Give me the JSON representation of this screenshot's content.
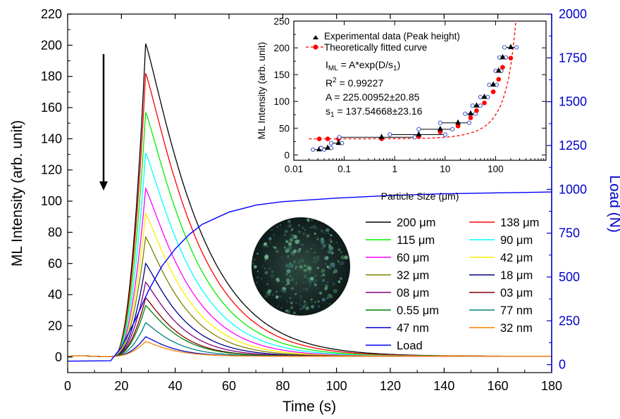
{
  "chart_data": [
    {
      "type": "line",
      "xlabel": "Time (s)",
      "ylabel": "ML Intensity (arb. unit)",
      "y2label": "Load (N)",
      "xlim": [
        0,
        180
      ],
      "ylim": [
        -10,
        220
      ],
      "y2lim": [
        -45.45,
        2000
      ],
      "xticks": [
        0,
        20,
        40,
        60,
        80,
        100,
        120,
        140,
        160,
        180
      ],
      "yticks": [
        0,
        20,
        40,
        60,
        80,
        100,
        120,
        140,
        160,
        180,
        200,
        220
      ],
      "y2ticks": [
        0,
        250,
        500,
        750,
        1000,
        1250,
        1500,
        1750,
        2000
      ],
      "legend_position": "bottom-right, two columns",
      "grid": false,
      "peak_time": 29,
      "series": [
        {
          "name": "200 μm",
          "color": "#000000",
          "peak": 201,
          "decay": 22
        },
        {
          "name": "138 μm",
          "color": "#ff0000",
          "peak": 182,
          "decay": 21
        },
        {
          "name": "115 μm",
          "color": "#00ee00",
          "peak": 157,
          "decay": 20
        },
        {
          "name": "90 μm",
          "color": "#00ffff",
          "peak": 131,
          "decay": 19
        },
        {
          "name": "60 μm",
          "color": "#ff00ff",
          "peak": 108,
          "decay": 18
        },
        {
          "name": "42 μm",
          "color": "#ffee00",
          "peak": 92,
          "decay": 17
        },
        {
          "name": "32 μm",
          "color": "#808000",
          "peak": 77,
          "decay": 16
        },
        {
          "name": "18 μm",
          "color": "#000080",
          "peak": 60,
          "decay": 15
        },
        {
          "name": "08 μm",
          "color": "#800080",
          "peak": 48,
          "decay": 14
        },
        {
          "name": "03 μm",
          "color": "#800000",
          "peak": 38,
          "decay": 13
        },
        {
          "name": "0.55 μm",
          "color": "#008000",
          "peak": 33,
          "decay": 13
        },
        {
          "name": "77 nm",
          "color": "#008080",
          "peak": 22,
          "decay": 12
        },
        {
          "name": "47 nm",
          "color": "#0000cc",
          "peak": 13,
          "decay": 11
        },
        {
          "name": "32 nm",
          "color": "#ff8000",
          "peak": 10,
          "decay": 11
        }
      ],
      "load_series": {
        "name": "Load",
        "color": "#0000ff",
        "axis": "right",
        "x": [
          0,
          16,
          20,
          25,
          30,
          35,
          40,
          45,
          50,
          60,
          70,
          80,
          100,
          120,
          140,
          160,
          180
        ],
        "y": [
          20,
          22,
          100,
          250,
          420,
          560,
          660,
          740,
          800,
          870,
          910,
          930,
          950,
          965,
          975,
          980,
          985
        ]
      },
      "annotation": "down-arrow",
      "inset_image": "circular ML glow image",
      "text_colors": {
        "y2_axis": "#0000cc"
      }
    },
    {
      "type": "scatter",
      "inset": true,
      "xlabel": "Particle Size (μm)",
      "ylabel": "ML Intensity (arb. unit)",
      "xscale": "log",
      "xlim": [
        0.01,
        1000
      ],
      "ylim": [
        -10,
        250
      ],
      "xticks": [
        0.01,
        0.1,
        1,
        10,
        100
      ],
      "xtick_labels": [
        "0.01",
        "0.1",
        "1",
        "10",
        "100"
      ],
      "yticks": [
        0,
        50,
        100,
        150,
        200,
        250
      ],
      "legend": [
        "Experimental data (Peak height)",
        "Theoretically fitted curve"
      ],
      "fit": {
        "equation_main": "I",
        "equation_sub": "ML",
        "equation_rest": " = A*exp(D/s",
        "equation_sub2": "1",
        "equation_close": ")",
        "r2_label": "R",
        "r2_sup": "2",
        "r2_value": " =  0.99227",
        "a_text": "A = 225.00952±20.85",
        "s1_label": "s",
        "s1_sub": "1",
        "s1_value": " = 137.54668±23.16",
        "A": 225,
        "s1": 137.5,
        "y0": 30
      },
      "points": {
        "x": [
          0.032,
          0.047,
          0.077,
          0.55,
          3,
          8,
          18,
          32,
          42,
          60,
          90,
          115,
          138,
          200
        ],
        "y": [
          10,
          13,
          22,
          33,
          38,
          48,
          60,
          77,
          92,
          108,
          131,
          157,
          182,
          201
        ],
        "xerr_low": [
          0.024,
          0.035,
          0.055,
          0.08,
          0.8,
          3,
          8,
          25,
          35,
          50,
          75,
          100,
          120,
          150
        ],
        "xerr_high": [
          0.04,
          0.055,
          0.09,
          2.5,
          10,
          14,
          30,
          40,
          50,
          70,
          105,
          130,
          160,
          260
        ]
      }
    }
  ]
}
